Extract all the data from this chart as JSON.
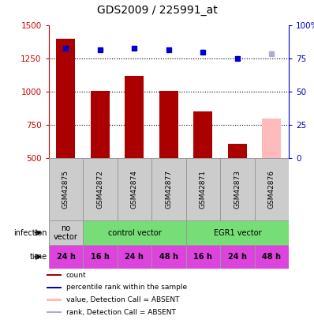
{
  "title": "GDS2009 / 225991_at",
  "samples": [
    "GSM42875",
    "GSM42872",
    "GSM42874",
    "GSM42877",
    "GSM42871",
    "GSM42873",
    "GSM42876"
  ],
  "bar_values": [
    1400,
    1010,
    1120,
    1010,
    855,
    610,
    800
  ],
  "bar_colors": [
    "#aa0000",
    "#aa0000",
    "#aa0000",
    "#aa0000",
    "#aa0000",
    "#aa0000",
    "#ffbbbb"
  ],
  "rank_values": [
    83,
    82,
    83,
    82,
    80,
    75,
    79
  ],
  "rank_colors": [
    "#0000cc",
    "#0000cc",
    "#0000cc",
    "#0000cc",
    "#0000cc",
    "#0000cc",
    "#aaaadd"
  ],
  "ylim_left": [
    500,
    1500
  ],
  "ylim_right": [
    0,
    100
  ],
  "yticks_left": [
    500,
    750,
    1000,
    1250,
    1500
  ],
  "yticks_right": [
    0,
    25,
    50,
    75,
    100
  ],
  "time_labels": [
    "24 h",
    "16 h",
    "24 h",
    "48 h",
    "16 h",
    "24 h",
    "48 h"
  ],
  "time_color": "#dd44dd",
  "sample_bg_color": "#cccccc",
  "sample_border_color": "#999999",
  "left_axis_color": "#cc0000",
  "right_axis_color": "#0000cc",
  "infection_groups": [
    {
      "label": "no\nvector",
      "start": 0,
      "end": 1,
      "color": "#cccccc"
    },
    {
      "label": "control vector",
      "start": 1,
      "end": 4,
      "color": "#77dd77"
    },
    {
      "label": "EGR1 vector",
      "start": 4,
      "end": 7,
      "color": "#77dd77"
    }
  ],
  "legend_items": [
    {
      "label": "count",
      "color": "#aa0000"
    },
    {
      "label": "percentile rank within the sample",
      "color": "#0000cc"
    },
    {
      "label": "value, Detection Call = ABSENT",
      "color": "#ffbbbb"
    },
    {
      "label": "rank, Detection Call = ABSENT",
      "color": "#aaaadd"
    }
  ]
}
